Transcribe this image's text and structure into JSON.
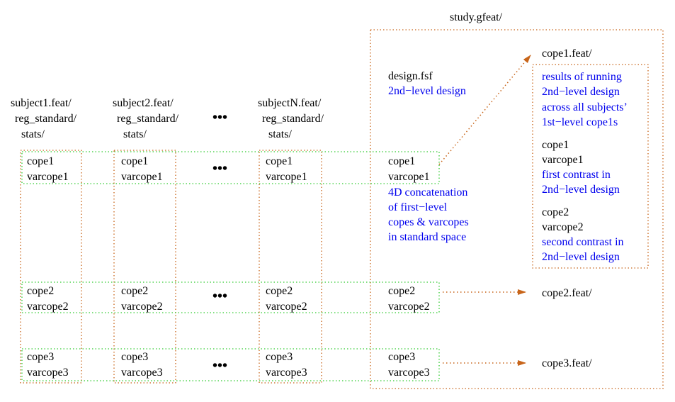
{
  "study": {
    "title": "study.gfeat/"
  },
  "subjects": [
    {
      "lines": [
        "subject1.feat/",
        "reg_standard/",
        "stats/"
      ]
    },
    {
      "lines": [
        "subject2.feat/",
        "reg_standard/",
        "stats/"
      ]
    },
    {
      "lines": [
        "subjectN.feat/",
        "reg_standard/",
        "stats/"
      ]
    }
  ],
  "ellipsis": "•••",
  "rows": [
    {
      "cope": "cope1",
      "varcope": "varcope1"
    },
    {
      "cope": "cope2",
      "varcope": "varcope2"
    },
    {
      "cope": "cope3",
      "varcope": "varcope3"
    }
  ],
  "design": {
    "file": "design.fsf",
    "desc": "2nd−level design"
  },
  "concat_note": [
    "4D concatenation",
    "of first−level",
    "copes & varcopes",
    "in standard space"
  ],
  "cope1_feat": {
    "title": "cope1.feat/",
    "results": [
      "results of running",
      "2nd−level design",
      "across all subjects’",
      "1st−level cope1s"
    ],
    "contrast1": {
      "cope": "cope1",
      "varcope": "varcope1",
      "desc": [
        "first contrast in",
        "2nd−level design"
      ]
    },
    "contrast2": {
      "cope": "cope2",
      "varcope": "varcope2",
      "desc": [
        "second contrast in",
        "2nd−level design"
      ]
    }
  },
  "cope2_feat": "cope2.feat/",
  "cope3_feat": "cope3.feat/",
  "colors": {
    "orange": "#c8651a",
    "green": "#33cc33",
    "blue": "#0000ee"
  }
}
